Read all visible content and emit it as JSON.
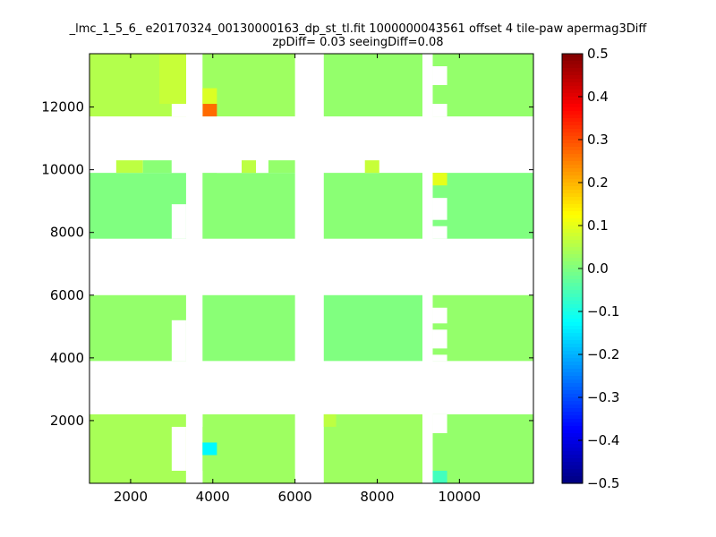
{
  "chart_data": {
    "type": "heatmap",
    "title_line1": "_lmc_1_5_6_ e20170324_00130000163_dp_st_tl.fit 1000000043561 offset 4 tile-paw apermag3Diff",
    "title_line2": "zpDiff= 0.03 seeingDiff=0.08",
    "xlabel": "",
    "ylabel": "",
    "xlim": [
      1000,
      11800
    ],
    "ylim": [
      0,
      13700
    ],
    "x_ticks": [
      2000,
      4000,
      6000,
      8000,
      10000
    ],
    "x_tick_labels": [
      "2000",
      "4000",
      "6000",
      "8000",
      "10000"
    ],
    "y_ticks": [
      2000,
      4000,
      6000,
      8000,
      10000,
      12000
    ],
    "y_tick_labels": [
      "2000",
      "4000",
      "6000",
      "8000",
      "10000",
      "12000"
    ],
    "colorbar": {
      "colormap": "jet",
      "range": [
        -0.5,
        0.5
      ],
      "ticks": [
        0.5,
        0.4,
        0.3,
        0.2,
        0.1,
        0.0,
        -0.1,
        -0.2,
        -0.3,
        -0.4,
        -0.5
      ],
      "tick_labels": [
        "0.5",
        "0.4",
        "0.3",
        "0.2",
        "0.1",
        "0.0",
        "−0.1",
        "−0.2",
        "−0.3",
        "−0.4",
        "−0.5"
      ]
    },
    "regions": [
      {
        "x": [
          1000,
          3350
        ],
        "y": [
          11700,
          13700
        ],
        "value": 0.05
      },
      {
        "x": [
          3750,
          6000
        ],
        "y": [
          11700,
          13700
        ],
        "value": 0.03
      },
      {
        "x": [
          6700,
          9100
        ],
        "y": [
          11700,
          13700
        ],
        "value": 0.02
      },
      {
        "x": [
          9350,
          11800
        ],
        "y": [
          11700,
          13700
        ],
        "value": 0.02
      },
      {
        "x": [
          1000,
          3350
        ],
        "y": [
          7800,
          9900
        ],
        "value": 0.0
      },
      {
        "x": [
          3750,
          6000
        ],
        "y": [
          7800,
          9900
        ],
        "value": 0.01
      },
      {
        "x": [
          6700,
          9100
        ],
        "y": [
          7800,
          9900
        ],
        "value": 0.01
      },
      {
        "x": [
          9350,
          11800
        ],
        "y": [
          7800,
          9900
        ],
        "value": 0.0
      },
      {
        "x": [
          1000,
          3350
        ],
        "y": [
          3900,
          6000
        ],
        "value": 0.02
      },
      {
        "x": [
          3750,
          6000
        ],
        "y": [
          3900,
          6000
        ],
        "value": 0.01
      },
      {
        "x": [
          6700,
          9100
        ],
        "y": [
          3900,
          6000
        ],
        "value": 0.0
      },
      {
        "x": [
          9350,
          11800
        ],
        "y": [
          3900,
          6000
        ],
        "value": 0.02
      },
      {
        "x": [
          1000,
          3350
        ],
        "y": [
          0,
          2200
        ],
        "value": 0.04
      },
      {
        "x": [
          3750,
          6000
        ],
        "y": [
          0,
          2200
        ],
        "value": 0.03
      },
      {
        "x": [
          6700,
          9100
        ],
        "y": [
          0,
          2200
        ],
        "value": 0.03
      },
      {
        "x": [
          9350,
          11800
        ],
        "y": [
          0,
          2200
        ],
        "value": 0.02
      },
      {
        "x": [
          1650,
          2300
        ],
        "y": [
          9900,
          10300
        ],
        "value": 0.06
      },
      {
        "x": [
          2300,
          3000
        ],
        "y": [
          9900,
          10300
        ],
        "value": 0.01
      },
      {
        "x": [
          4700,
          5050
        ],
        "y": [
          9900,
          10300
        ],
        "value": 0.06
      },
      {
        "x": [
          5350,
          6000
        ],
        "y": [
          9900,
          10300
        ],
        "value": 0.02
      },
      {
        "x": [
          7700,
          8050
        ],
        "y": [
          9900,
          10300
        ],
        "value": 0.07
      },
      {
        "x": [
          2700,
          3350
        ],
        "y": [
          12100,
          13700
        ],
        "value": 0.07
      },
      {
        "x": [
          3750,
          4100
        ],
        "y": [
          12100,
          12600
        ],
        "value": 0.09
      },
      {
        "x": [
          3750,
          4100
        ],
        "y": [
          11700,
          12100
        ],
        "value": 0.27
      },
      {
        "x": [
          9350,
          9700
        ],
        "y": [
          9500,
          9900
        ],
        "value": 0.1
      },
      {
        "x": [
          3750,
          4100
        ],
        "y": [
          900,
          1300
        ],
        "value": -0.13
      },
      {
        "x": [
          9350,
          9700
        ],
        "y": [
          0,
          400
        ],
        "value": -0.06
      },
      {
        "x": [
          6700,
          7000
        ],
        "y": [
          1800,
          2200
        ],
        "value": 0.06
      }
    ],
    "holes": [
      {
        "x": [
          3000,
          3350
        ],
        "y": [
          7800,
          8900
        ]
      },
      {
        "x": [
          3000,
          3350
        ],
        "y": [
          3900,
          5200
        ]
      },
      {
        "x": [
          3000,
          3350
        ],
        "y": [
          400,
          1800
        ]
      },
      {
        "x": [
          3350,
          3750
        ],
        "y": [
          0,
          400
        ]
      },
      {
        "x": [
          4100,
          4700
        ],
        "y": [
          9900,
          10300
        ]
      },
      {
        "x": [
          5050,
          5350
        ],
        "y": [
          9900,
          10300
        ]
      },
      {
        "x": [
          3000,
          3750
        ],
        "y": [
          9900,
          10300
        ]
      },
      {
        "x": [
          9350,
          9700
        ],
        "y": [
          12700,
          13300
        ]
      },
      {
        "x": [
          9350,
          9700
        ],
        "y": [
          11700,
          12100
        ]
      },
      {
        "x": [
          9350,
          9700
        ],
        "y": [
          7800,
          8200
        ]
      },
      {
        "x": [
          9350,
          9700
        ],
        "y": [
          8400,
          9100
        ]
      },
      {
        "x": [
          9350,
          9700
        ],
        "y": [
          5100,
          5600
        ]
      },
      {
        "x": [
          9350,
          9700
        ],
        "y": [
          4300,
          4900
        ]
      },
      {
        "x": [
          9350,
          9700
        ],
        "y": [
          3900,
          4100
        ]
      },
      {
        "x": [
          9350,
          9700
        ],
        "y": [
          1600,
          2200
        ]
      },
      {
        "x": [
          3350,
          3750
        ],
        "y": [
          1800,
          2200
        ]
      },
      {
        "x": [
          3000,
          3750
        ],
        "y": [
          11700,
          12100
        ]
      }
    ],
    "grid": false,
    "legend": "colorbar-right"
  }
}
